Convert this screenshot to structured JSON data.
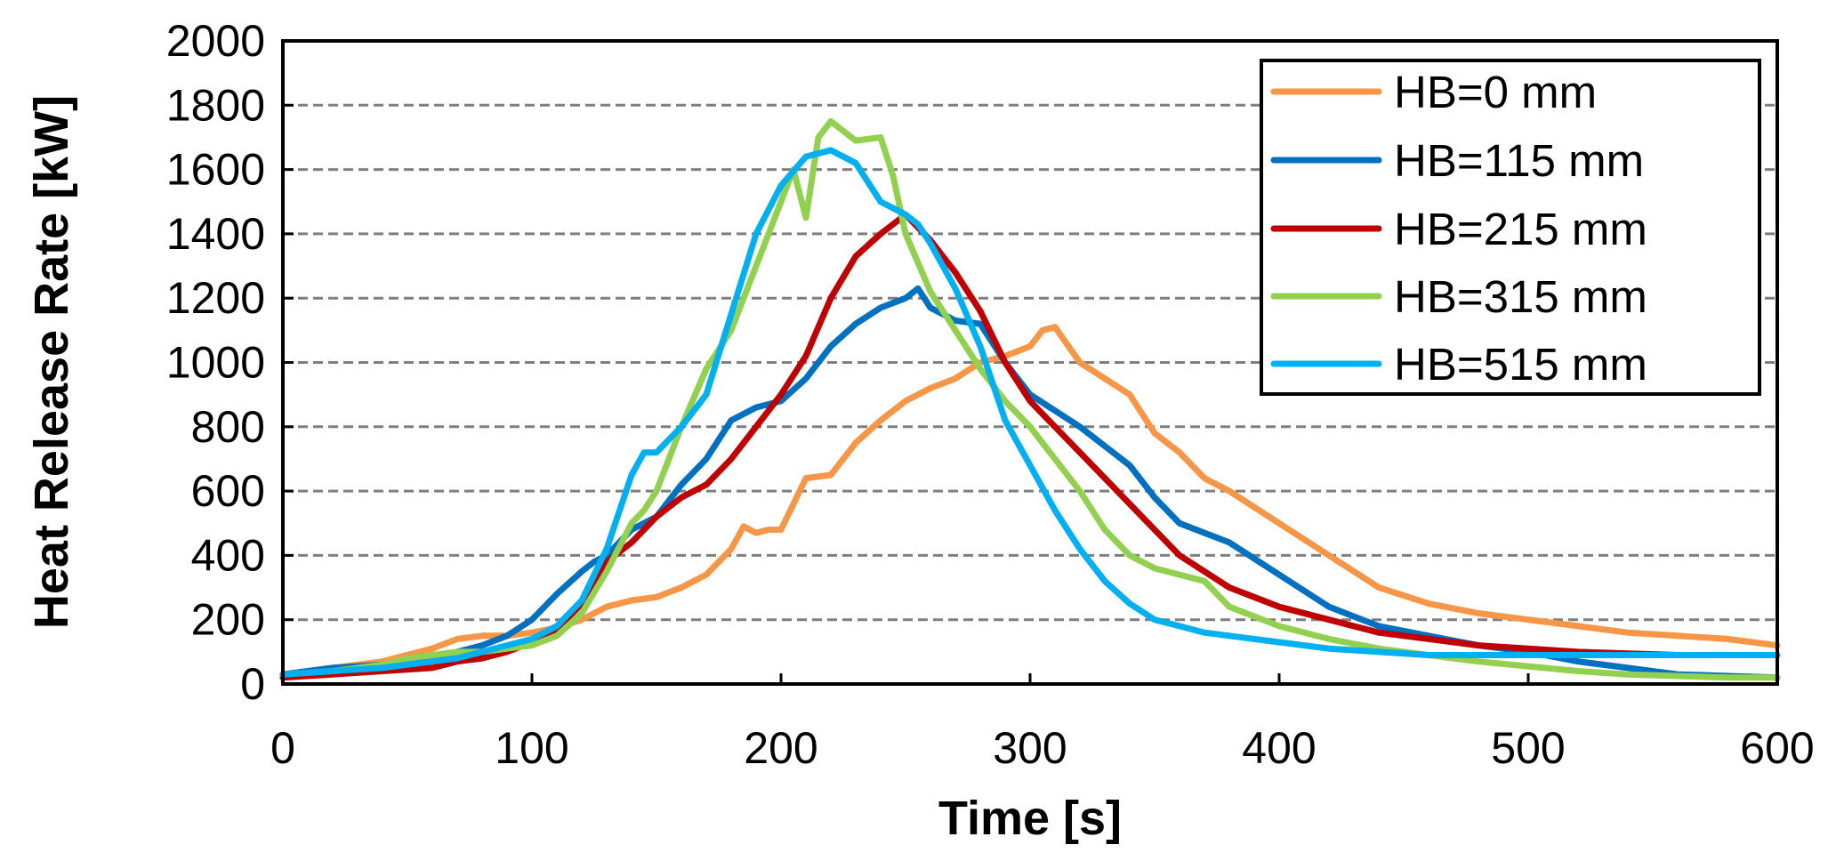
{
  "chart_data": {
    "type": "line",
    "title": "",
    "xlabel": "Time [s]",
    "ylabel": "Heat Release Rate [kW]",
    "xlim": [
      0,
      600
    ],
    "ylim": [
      0,
      2000
    ],
    "x_ticks": [
      0,
      100,
      200,
      300,
      400,
      500,
      600
    ],
    "y_ticks": [
      0,
      200,
      400,
      600,
      800,
      1000,
      1200,
      1400,
      1600,
      1800,
      2000
    ],
    "x_tick_labels": [
      "0",
      "100",
      "200",
      "300",
      "400",
      "500",
      "600"
    ],
    "y_tick_labels": [
      "0",
      "200",
      "400",
      "600",
      "800",
      "1000",
      "1200",
      "1400",
      "1600",
      "1800",
      "2000"
    ],
    "grid": "horizontal-dashed",
    "legend_position": "top-right",
    "series": [
      {
        "name": "HB=0 mm",
        "color": "#F79646",
        "x": [
          0,
          20,
          40,
          60,
          70,
          80,
          90,
          100,
          110,
          120,
          130,
          140,
          150,
          160,
          170,
          180,
          185,
          190,
          195,
          200,
          205,
          210,
          220,
          230,
          240,
          250,
          260,
          270,
          280,
          290,
          300,
          305,
          310,
          320,
          330,
          340,
          350,
          360,
          370,
          380,
          400,
          420,
          440,
          460,
          480,
          500,
          520,
          540,
          560,
          580,
          600
        ],
        "y": [
          30,
          50,
          70,
          110,
          140,
          150,
          150,
          160,
          175,
          200,
          240,
          260,
          270,
          300,
          340,
          420,
          490,
          470,
          480,
          480,
          560,
          640,
          650,
          750,
          820,
          880,
          920,
          950,
          1000,
          1020,
          1050,
          1100,
          1110,
          1000,
          950,
          900,
          780,
          720,
          640,
          600,
          500,
          400,
          300,
          250,
          220,
          200,
          180,
          160,
          150,
          140,
          120
        ]
      },
      {
        "name": "HB=115 mm",
        "color": "#0070C0",
        "x": [
          0,
          20,
          40,
          60,
          70,
          80,
          90,
          100,
          110,
          120,
          125,
          130,
          135,
          140,
          150,
          160,
          170,
          180,
          190,
          200,
          210,
          220,
          230,
          240,
          250,
          255,
          260,
          270,
          280,
          290,
          300,
          310,
          320,
          330,
          340,
          350,
          360,
          380,
          400,
          420,
          440,
          460,
          480,
          500,
          520,
          540,
          560,
          580,
          600
        ],
        "y": [
          30,
          50,
          60,
          80,
          100,
          120,
          150,
          200,
          280,
          350,
          380,
          400,
          440,
          480,
          520,
          620,
          700,
          820,
          860,
          880,
          950,
          1050,
          1120,
          1170,
          1200,
          1230,
          1170,
          1130,
          1120,
          1000,
          900,
          850,
          800,
          740,
          680,
          580,
          500,
          440,
          340,
          240,
          180,
          150,
          120,
          100,
          70,
          50,
          30,
          25,
          20
        ]
      },
      {
        "name": "HB=215 mm",
        "color": "#C00000",
        "x": [
          0,
          20,
          40,
          60,
          70,
          80,
          90,
          100,
          110,
          120,
          130,
          140,
          150,
          160,
          170,
          180,
          190,
          200,
          210,
          220,
          230,
          240,
          245,
          250,
          260,
          270,
          280,
          290,
          300,
          310,
          320,
          330,
          340,
          350,
          360,
          380,
          400,
          420,
          440,
          460,
          480,
          500,
          520,
          540,
          560,
          580,
          600
        ],
        "y": [
          20,
          30,
          40,
          50,
          70,
          80,
          100,
          130,
          170,
          250,
          380,
          440,
          520,
          580,
          620,
          700,
          800,
          900,
          1020,
          1200,
          1330,
          1400,
          1430,
          1460,
          1380,
          1280,
          1160,
          1000,
          880,
          800,
          720,
          640,
          560,
          480,
          400,
          300,
          240,
          200,
          160,
          140,
          120,
          110,
          100,
          95,
          90,
          90,
          90
        ]
      },
      {
        "name": "HB=315 mm",
        "color": "#92D050",
        "x": [
          0,
          20,
          40,
          50,
          60,
          70,
          80,
          90,
          100,
          110,
          120,
          130,
          140,
          145,
          150,
          160,
          170,
          180,
          190,
          200,
          205,
          210,
          215,
          220,
          230,
          240,
          245,
          250,
          260,
          270,
          280,
          290,
          300,
          310,
          320,
          330,
          340,
          350,
          360,
          370,
          380,
          400,
          420,
          440,
          460,
          480,
          500,
          520,
          540,
          560,
          580,
          600
        ],
        "y": [
          30,
          40,
          60,
          80,
          90,
          100,
          100,
          110,
          120,
          150,
          220,
          350,
          500,
          540,
          600,
          800,
          980,
          1100,
          1300,
          1500,
          1600,
          1450,
          1700,
          1750,
          1690,
          1700,
          1580,
          1400,
          1220,
          1100,
          980,
          880,
          800,
          700,
          600,
          480,
          400,
          360,
          340,
          320,
          240,
          180,
          140,
          110,
          90,
          70,
          55,
          40,
          30,
          25,
          20,
          20
        ]
      },
      {
        "name": "HB=515 mm",
        "color": "#00B0F0",
        "x": [
          0,
          20,
          40,
          60,
          70,
          80,
          90,
          100,
          110,
          120,
          130,
          140,
          145,
          150,
          160,
          170,
          180,
          190,
          200,
          210,
          220,
          230,
          240,
          250,
          255,
          260,
          270,
          280,
          290,
          300,
          310,
          320,
          330,
          340,
          350,
          360,
          370,
          380,
          400,
          420,
          440,
          460,
          480,
          500,
          520,
          540,
          560,
          580,
          600
        ],
        "y": [
          30,
          40,
          50,
          70,
          80,
          100,
          120,
          140,
          180,
          260,
          420,
          650,
          720,
          720,
          800,
          900,
          1150,
          1400,
          1550,
          1640,
          1660,
          1620,
          1500,
          1460,
          1430,
          1370,
          1230,
          1050,
          820,
          680,
          540,
          420,
          320,
          250,
          200,
          180,
          160,
          150,
          130,
          110,
          100,
          90,
          90,
          90,
          90,
          90,
          90,
          90,
          90
        ]
      }
    ]
  }
}
